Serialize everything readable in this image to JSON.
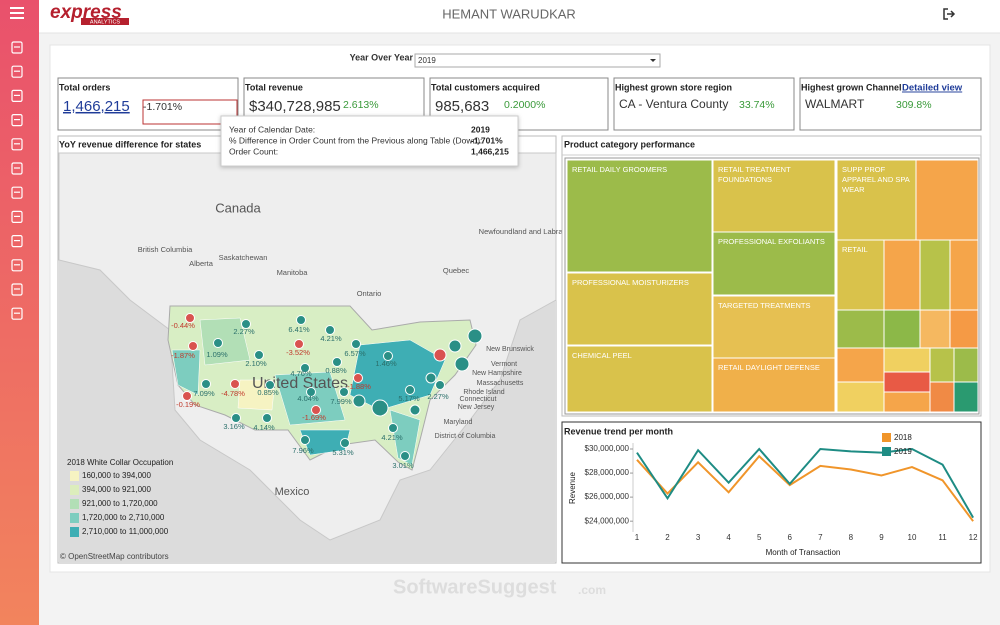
{
  "header": {
    "logo_main": "express",
    "logo_sub": "ANALYTICS",
    "user": "HEMANT WARUDKAR"
  },
  "filter": {
    "label": "Year Over Year",
    "value": "2019"
  },
  "kpis": [
    {
      "title": "Total orders",
      "value": "1,466,215",
      "change": "-1.701%"
    },
    {
      "title": "Total revenue",
      "value": "$340,728,985",
      "change": "2.613%"
    },
    {
      "title": "Total customers acquired",
      "value": "985,683",
      "change": "0.2000%"
    },
    {
      "title": "Highest grown store region",
      "value": "CA - Ventura County",
      "change": "33.74%"
    },
    {
      "title": "Highest grown Channel",
      "value": "WALMART",
      "change": "309.8%",
      "link": "Detailed view"
    }
  ],
  "tooltip": [
    {
      "label": "Year of Calendar Date:",
      "value": "2019"
    },
    {
      "label": "% Difference in Order Count from the Previous along Table (Down):",
      "value": "-1.701%"
    },
    {
      "label": "Order Count:",
      "value": "1,466,215"
    }
  ],
  "map": {
    "title": "YoY revenue difference for states",
    "places": [
      "Canada",
      "British Columbia",
      "Alberta",
      "Saskatchewan",
      "Manitoba",
      "Ontario",
      "Quebec",
      "Newfoundland and Labrador",
      "New Brunswick",
      "Vermont",
      "New Hampshire",
      "Massachusetts",
      "Rhode Island",
      "Connecticut",
      "New Jersey",
      "Maryland",
      "District of Columbia",
      "United States",
      "Mexico"
    ],
    "bubble_labels": [
      "-0.44%",
      "2.27%",
      "6.41%",
      "4.21%",
      "-1.87%",
      "1.09%",
      "-3.52%",
      "6.57%",
      "2.10%",
      "4.76%",
      "0.88%",
      "1.46%",
      "7.09%",
      "-4.78%",
      "0.85%",
      "4.04%",
      "-1.88%",
      "5.17%",
      "2.27%",
      "-0.19%",
      "7.99%",
      "3.16%",
      "4.14%",
      "-1.69%",
      "4.21%",
      "7.96%",
      "5.31%",
      "3.01%"
    ],
    "legend_title": "2018 White Collar Occupation",
    "legend": [
      {
        "label": "160,000 to 394,000",
        "color": "#f6f3c2"
      },
      {
        "label": "394,000 to 921,000",
        "color": "#dcedbc"
      },
      {
        "label": "921,000 to 1,720,000",
        "color": "#b2dfb6"
      },
      {
        "label": "1,720,000 to 2,710,000",
        "color": "#7dcdbf"
      },
      {
        "label": "2,710,000 to 11,000,000",
        "color": "#3eaeb4"
      }
    ],
    "credit": "© OpenStreetMap contributors"
  },
  "treemap": {
    "title": "Product category performance",
    "cells": [
      "RETAIL DAILY GROOMERS",
      "RETAIL TREATMENT FOUNDATIONS",
      "SUPP PROF APPAREL AND SPA WEAR",
      "PROFESSIONAL EXFOLIANTS",
      "RETAIL",
      "PROFESSIONAL MOISTURIZERS",
      "TARGETED TREATMENTS",
      "CHEMICAL PEEL",
      "RETAIL DAYLIGHT DEFENSE"
    ]
  },
  "revenue_chart": {
    "type": "line",
    "title": "Revenue trend per month",
    "y_label": "Revenue",
    "x_label": "Month of Transaction",
    "x": [
      1,
      2,
      3,
      4,
      5,
      6,
      7,
      8,
      9,
      10,
      11,
      12
    ],
    "xlim": [
      0.87,
      12.16
    ],
    "ylim": [
      23100000,
      30500000
    ],
    "yticks": [
      {
        "value": 24000000,
        "label": "$24,000,000"
      },
      {
        "value": 26000000,
        "label": "$26,000,000"
      },
      {
        "value": 28000000,
        "label": "$28,000,000"
      },
      {
        "value": 30000000,
        "label": "$30,000,000"
      }
    ],
    "series": [
      {
        "name": "2018",
        "color": "#f0952a",
        "values": [
          29100000,
          26300000,
          28900000,
          26400000,
          29400000,
          27000000,
          28600000,
          28300000,
          27800000,
          28500000,
          27400000,
          24000000
        ]
      },
      {
        "name": "2019",
        "color": "#1e8c84",
        "values": [
          29700000,
          25900000,
          29900000,
          27200000,
          30000000,
          27100000,
          30000000,
          29800000,
          29700000,
          30000000,
          28700000,
          24300000
        ]
      }
    ],
    "legend": "top-right"
  },
  "watermark": {
    "main": "SoftwareSuggest",
    "suffix": ".com"
  }
}
